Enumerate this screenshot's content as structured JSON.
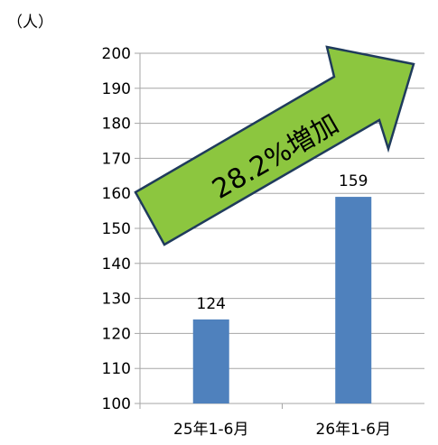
{
  "chart_data": {
    "type": "bar",
    "categories": [
      "25年1-6月",
      "26年1-6月"
    ],
    "values": [
      124,
      159
    ],
    "data_labels": [
      "124",
      "159"
    ],
    "ylabel": "（人）",
    "ylim": [
      100,
      200
    ],
    "yticks": [
      100,
      110,
      120,
      130,
      140,
      150,
      160,
      170,
      180,
      190,
      200
    ],
    "grid": true,
    "legend": "none",
    "annotation": "28.2%増加"
  },
  "colors": {
    "bar": "#4f81bd",
    "grid": "#a6a6a6",
    "arrow_fill": "#8cc63f",
    "arrow_stroke": "#1f3b5c"
  }
}
